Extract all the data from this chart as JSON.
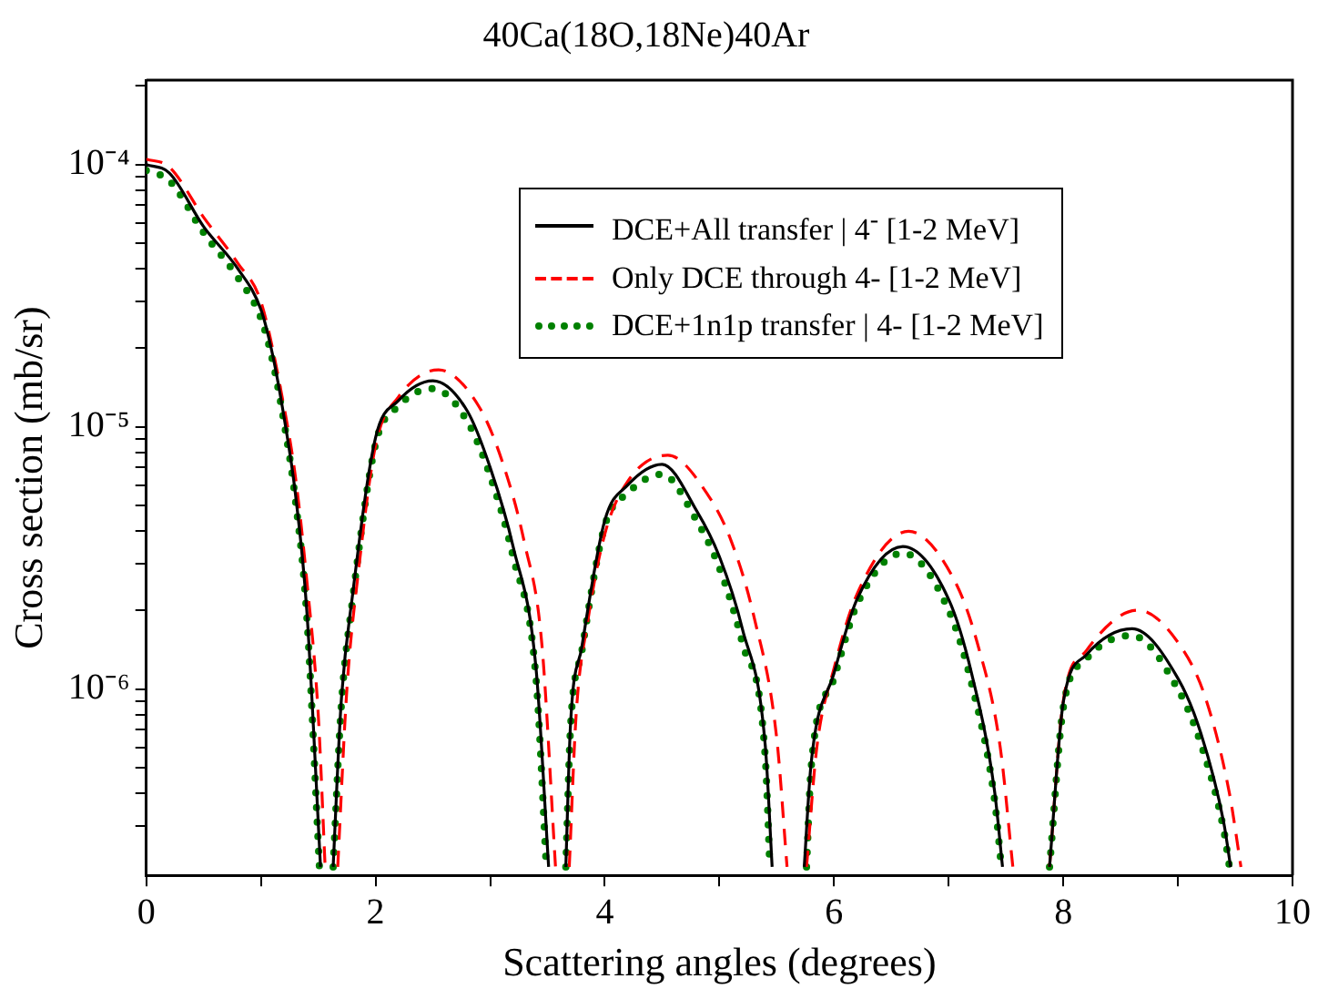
{
  "chart_data": {
    "type": "line",
    "title": "40Ca(18O,18Ne)40Ar",
    "xlabel": "Scattering angles (degrees)",
    "ylabel": "Cross section (mb/sr)",
    "log": "y",
    "grid": false,
    "legend": "top right",
    "marker": "none",
    "xlim": [
      0,
      10
    ],
    "xticks": [
      0,
      {
        "value": 1,
        "label": null
      },
      2,
      {
        "value": 3,
        "label": null
      },
      4,
      {
        "value": 5,
        "label": null
      },
      6,
      {
        "value": 7,
        "label": null
      },
      8,
      {
        "value": 9,
        "label": null
      },
      10
    ],
    "ylim": [
      1.95e-07,
      0.00021
    ],
    "yticks": [
      {
        "value": 3e-07,
        "label": null
      },
      {
        "value": 4e-07,
        "label": null
      },
      {
        "value": 5e-07,
        "label": null
      },
      {
        "value": 6e-07,
        "label": null
      },
      {
        "value": 7e-07,
        "label": null
      },
      {
        "value": 8e-07,
        "label": null
      },
      {
        "value": 9e-07,
        "label": null
      },
      {
        "value": 1e-06,
        "label": "10⁻⁶"
      },
      {
        "value": 2e-06,
        "label": null
      },
      {
        "value": 3e-06,
        "label": null
      },
      {
        "value": 4e-06,
        "label": null
      },
      {
        "value": 5e-06,
        "label": null
      },
      {
        "value": 6e-06,
        "label": null
      },
      {
        "value": 7e-06,
        "label": null
      },
      {
        "value": 8e-06,
        "label": null
      },
      {
        "value": 9e-06,
        "label": null
      },
      {
        "value": 1e-05,
        "label": "10⁻⁵"
      },
      {
        "value": 2e-05,
        "label": null
      },
      {
        "value": 3e-05,
        "label": null
      },
      {
        "value": 4e-05,
        "label": null
      },
      {
        "value": 5e-05,
        "label": null
      },
      {
        "value": 6e-05,
        "label": null
      },
      {
        "value": 7e-05,
        "label": null
      },
      {
        "value": 8e-05,
        "label": null
      },
      {
        "value": 9e-05,
        "label": null
      },
      {
        "value": 0.0001,
        "label": "10⁻⁴"
      },
      {
        "value": 0.0002,
        "label": null
      }
    ],
    "series": [
      {
        "name": "DCE+All transfer | 4$^{-}$ [1-2 MeV]",
        "color": "#000000",
        "line_style": "solid",
        "x": [
          0,
          0.2,
          0.5,
          0.8,
          1.0,
          1.1,
          1.2,
          1.3,
          1.4,
          1.52,
          1.57,
          1.63,
          1.7,
          1.8,
          2.0,
          2.2,
          2.5,
          2.8,
          3.0,
          3.2,
          3.4,
          3.51,
          3.58,
          3.66,
          3.7,
          3.8,
          4.0,
          4.2,
          4.5,
          4.8,
          5.0,
          5.2,
          5.4,
          5.46,
          5.6,
          5.74,
          5.8,
          6.0,
          6.2,
          6.6,
          7.0,
          7.2,
          7.4,
          7.47,
          7.7,
          7.88,
          8.0,
          8.2,
          8.6,
          9.0,
          9.2,
          9.4,
          9.46
        ],
        "values": [
          0.0001,
          9.3e-05,
          5.8e-05,
          4e-05,
          2.8e-05,
          1.9e-05,
          1.1e-05,
          5.6e-06,
          2e-06,
          2.1e-07,
          null,
          2.1e-07,
          8.9e-07,
          2.3e-06,
          9.1e-06,
          1.26e-05,
          1.5e-05,
          1.15e-05,
          7e-06,
          3.5e-06,
          1.2e-06,
          2.1e-07,
          null,
          2.1e-07,
          7.2e-07,
          1.45e-06,
          4.4e-06,
          6e-06,
          7.2e-06,
          4.8e-06,
          3.2e-06,
          1.7e-06,
          6.1e-07,
          2.1e-07,
          null,
          2.1e-07,
          5.2e-07,
          1.15e-06,
          2.2e-06,
          3.5e-06,
          2.2e-06,
          1.15e-06,
          4.1e-07,
          2.1e-07,
          null,
          2.1e-07,
          8.9e-07,
          1.35e-06,
          1.7e-06,
          1.1e-06,
          6.8e-07,
          3.1e-07,
          2.1e-07
        ]
      },
      {
        "name": "Only DCE through 4- [1-2 MeV]",
        "color": "#ff0000",
        "line_style": "dashed",
        "x": [
          0,
          0.2,
          0.5,
          0.8,
          1.0,
          1.2,
          1.3,
          1.4,
          1.5,
          1.56,
          1.61,
          1.67,
          1.75,
          1.85,
          2.0,
          2.2,
          2.55,
          2.9,
          3.1,
          3.3,
          3.45,
          3.57,
          3.63,
          3.69,
          3.75,
          3.85,
          4.0,
          4.2,
          4.55,
          4.9,
          5.1,
          5.3,
          5.5,
          5.59,
          5.68,
          5.76,
          5.85,
          6.0,
          6.2,
          6.65,
          7.05,
          7.25,
          7.45,
          7.56,
          7.7,
          7.88,
          8.0,
          8.2,
          8.65,
          9.05,
          9.25,
          9.45,
          9.55
        ],
        "values": [
          0.000105,
          9.8e-05,
          6.3e-05,
          4.2e-05,
          3e-05,
          1.2e-05,
          6.5e-06,
          2.6e-06,
          8e-07,
          2.1e-07,
          null,
          2.1e-07,
          1e-06,
          2.8e-06,
          8.5e-06,
          1.3e-05,
          1.65e-05,
          1.2e-05,
          7.5e-06,
          3.6e-06,
          1.5e-06,
          2.1e-07,
          null,
          2.1e-07,
          8e-07,
          1.8e-06,
          3.9e-06,
          6.2e-06,
          7.8e-06,
          5.5e-06,
          3.7e-06,
          1.9e-06,
          6.5e-07,
          2.1e-07,
          null,
          2.1e-07,
          6e-07,
          1.2e-06,
          2.3e-06,
          4e-06,
          2.6e-06,
          1.5e-06,
          6e-07,
          2.1e-07,
          null,
          2.1e-07,
          9e-07,
          1.4e-06,
          2e-06,
          1.4e-06,
          9e-07,
          4e-07,
          2.1e-07
        ]
      },
      {
        "name": "DCE+1n1p transfer | 4- [1-2 MeV]",
        "color": "#008000",
        "line_style": "dotted",
        "x": [
          0,
          0.2,
          0.5,
          0.8,
          1.0,
          1.1,
          1.2,
          1.3,
          1.4,
          1.51,
          1.57,
          1.63,
          1.7,
          1.8,
          2.0,
          2.2,
          2.5,
          2.8,
          3.0,
          3.2,
          3.4,
          3.49,
          3.58,
          3.66,
          3.7,
          3.8,
          4.0,
          4.2,
          4.5,
          4.8,
          5.0,
          5.2,
          5.4,
          5.44,
          5.6,
          5.76,
          5.8,
          6.0,
          6.2,
          6.6,
          7.0,
          7.2,
          7.4,
          7.46,
          7.7,
          7.88,
          8.0,
          8.2,
          8.6,
          9.0,
          9.2,
          9.4,
          9.45
        ],
        "values": [
          9.5e-05,
          8.7e-05,
          5.5e-05,
          3.7e-05,
          2.6e-05,
          1.8e-05,
          1.05e-05,
          5.3e-06,
          1.9e-06,
          2.1e-07,
          null,
          2.1e-07,
          8.5e-07,
          2.2e-06,
          8.6e-06,
          1.2e-05,
          1.4e-05,
          1.05e-05,
          6.5e-06,
          3.2e-06,
          1.1e-06,
          2.1e-07,
          null,
          2.1e-07,
          7e-07,
          1.4e-06,
          4.2e-06,
          5.6e-06,
          6.6e-06,
          4.4e-06,
          2.9e-06,
          1.5e-06,
          5.5e-07,
          2.1e-07,
          null,
          2.1e-07,
          5e-07,
          1.1e-06,
          2.1e-06,
          3.3e-06,
          2e-06,
          1.05e-06,
          3.8e-07,
          2.1e-07,
          null,
          2.1e-07,
          8.5e-07,
          1.3e-06,
          1.6e-06,
          1e-06,
          6.2e-07,
          2.9e-07,
          2.1e-07
        ]
      }
    ]
  }
}
